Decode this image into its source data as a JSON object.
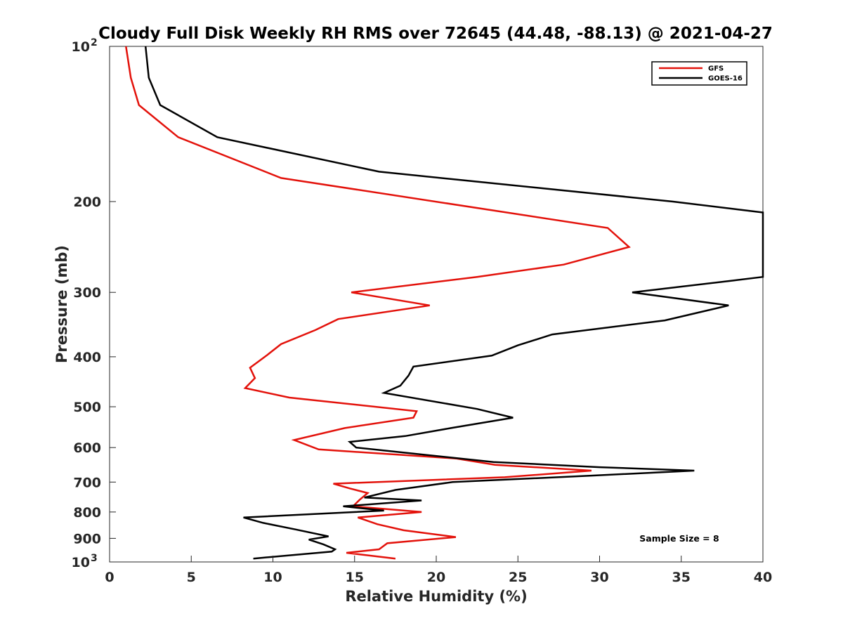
{
  "chart_data": {
    "type": "line",
    "title": "Cloudy Full Disk Weekly RH RMS over 72645 (44.48, -88.13) @ 2021-04-27",
    "xlabel": "Relative Humidity (%)",
    "ylabel": "Pressure (mb)",
    "xlim": [
      0,
      40
    ],
    "ylim": [
      100,
      1000
    ],
    "y_scale": "log",
    "y_reversed": true,
    "grid": false,
    "x_ticks": [
      0,
      5,
      10,
      15,
      20,
      25,
      30,
      35,
      40
    ],
    "x_tick_labels": [
      "0",
      "5",
      "10",
      "15",
      "20",
      "25",
      "30",
      "35",
      "40"
    ],
    "y_ticks": [
      100,
      200,
      300,
      400,
      500,
      600,
      700,
      800,
      900,
      1000
    ],
    "y_tick_labels": [
      {
        "base": "10",
        "exp": "2"
      },
      {
        "base": "200",
        "exp": ""
      },
      {
        "base": "300",
        "exp": ""
      },
      {
        "base": "400",
        "exp": ""
      },
      {
        "base": "500",
        "exp": ""
      },
      {
        "base": "600",
        "exp": ""
      },
      {
        "base": "700",
        "exp": ""
      },
      {
        "base": "800",
        "exp": ""
      },
      {
        "base": "900",
        "exp": ""
      },
      {
        "base": "10",
        "exp": "3"
      }
    ],
    "legend_position": "top-right",
    "annotation": "Sample Size = 8",
    "series": [
      {
        "name": "GFS",
        "color": "#e3120b",
        "points": [
          [
            1.0,
            100
          ],
          [
            1.3,
            115
          ],
          [
            1.8,
            130
          ],
          [
            4.2,
            150
          ],
          [
            10.5,
            180
          ],
          [
            30.5,
            225
          ],
          [
            31.8,
            245
          ],
          [
            27.8,
            265
          ],
          [
            22.5,
            280
          ],
          [
            14.8,
            300
          ],
          [
            19.6,
            318
          ],
          [
            14.0,
            338
          ],
          [
            12.6,
            355
          ],
          [
            10.5,
            378
          ],
          [
            9.6,
            398
          ],
          [
            8.6,
            420
          ],
          [
            8.9,
            440
          ],
          [
            8.3,
            460
          ],
          [
            11.0,
            480
          ],
          [
            18.8,
            510
          ],
          [
            18.6,
            525
          ],
          [
            14.4,
            550
          ],
          [
            11.3,
            580
          ],
          [
            12.8,
            605
          ],
          [
            21.2,
            630
          ],
          [
            23.6,
            648
          ],
          [
            29.5,
            665
          ],
          [
            24.2,
            685
          ],
          [
            13.7,
            705
          ],
          [
            14.7,
            720
          ],
          [
            15.8,
            735
          ],
          [
            15.3,
            758
          ],
          [
            14.9,
            780
          ],
          [
            19.1,
            800
          ],
          [
            15.2,
            820
          ],
          [
            16.4,
            845
          ],
          [
            18.0,
            868
          ],
          [
            21.2,
            895
          ],
          [
            17.0,
            920
          ],
          [
            16.5,
            945
          ],
          [
            14.5,
            960
          ],
          [
            17.5,
            985
          ]
        ]
      },
      {
        "name": "GOES-16",
        "color": "#000000",
        "points": [
          [
            2.2,
            100
          ],
          [
            2.4,
            115
          ],
          [
            3.1,
            130
          ],
          [
            6.6,
            150
          ],
          [
            16.5,
            175
          ],
          [
            34.5,
            200
          ],
          [
            40.0,
            210
          ],
          [
            40.0,
            280
          ],
          [
            38.0,
            285
          ],
          [
            32.0,
            300
          ],
          [
            37.9,
            318
          ],
          [
            34.0,
            340
          ],
          [
            27.1,
            362
          ],
          [
            25.0,
            380
          ],
          [
            23.4,
            398
          ],
          [
            18.6,
            418
          ],
          [
            18.3,
            435
          ],
          [
            17.8,
            455
          ],
          [
            16.8,
            470
          ],
          [
            22.5,
            505
          ],
          [
            24.7,
            525
          ],
          [
            20.9,
            550
          ],
          [
            18.1,
            570
          ],
          [
            14.7,
            585
          ],
          [
            15.1,
            600
          ],
          [
            23.5,
            640
          ],
          [
            30.0,
            655
          ],
          [
            35.8,
            665
          ],
          [
            29.5,
            680
          ],
          [
            21.0,
            700
          ],
          [
            17.5,
            725
          ],
          [
            15.6,
            750
          ],
          [
            19.1,
            760
          ],
          [
            14.3,
            780
          ],
          [
            16.8,
            795
          ],
          [
            8.2,
            820
          ],
          [
            9.4,
            840
          ],
          [
            11.4,
            865
          ],
          [
            13.4,
            892
          ],
          [
            12.2,
            905
          ],
          [
            13.1,
            925
          ],
          [
            13.8,
            945
          ],
          [
            13.6,
            955
          ],
          [
            8.8,
            985
          ]
        ]
      }
    ]
  }
}
